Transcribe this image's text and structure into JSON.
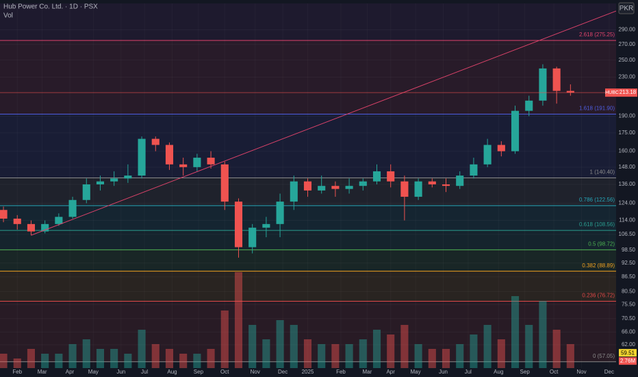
{
  "chart_data": {
    "type": "candlestick",
    "title": "Hub Power Co. Ltd. · 1D · PSX",
    "volume_title": "Vol",
    "currency": "PKR",
    "symbol": "HUBC",
    "log_scale": true,
    "xlim": [
      -0.25,
      44.3
    ],
    "ylim": [
      57,
      330
    ],
    "xticks": [
      {
        "value": 1,
        "label": "Feb"
      },
      {
        "value": 2.8,
        "label": "Mar"
      },
      {
        "value": 4.8,
        "label": "Apr"
      },
      {
        "value": 6.5,
        "label": "May"
      },
      {
        "value": 8.5,
        "label": "Jun"
      },
      {
        "value": 10.2,
        "label": "Jul"
      },
      {
        "value": 12.2,
        "label": "Aug"
      },
      {
        "value": 14.1,
        "label": "Sep"
      },
      {
        "value": 16,
        "label": "Oct"
      },
      {
        "value": 18.2,
        "label": "Nov"
      },
      {
        "value": 20.2,
        "label": "Dec"
      },
      {
        "value": 22,
        "label": "2025"
      },
      {
        "value": 24.4,
        "label": "Feb"
      },
      {
        "value": 26.3,
        "label": "Mar"
      },
      {
        "value": 28,
        "label": "Apr"
      },
      {
        "value": 29.8,
        "label": "May"
      },
      {
        "value": 31.8,
        "label": "Jun"
      },
      {
        "value": 33.6,
        "label": "Jul"
      },
      {
        "value": 35.8,
        "label": "Aug"
      },
      {
        "value": 37.7,
        "label": "Sep"
      },
      {
        "value": 39.8,
        "label": "Oct"
      },
      {
        "value": 41.8,
        "label": "Nov"
      },
      {
        "value": 43.8,
        "label": "Dec"
      }
    ],
    "yticks": [
      {
        "value": 290,
        "label": "290.00"
      },
      {
        "value": 270,
        "label": "270.00"
      },
      {
        "value": 250,
        "label": "250.00"
      },
      {
        "value": 230,
        "label": "230.00"
      },
      {
        "value": 190,
        "label": "190.00"
      },
      {
        "value": 175,
        "label": "175.00"
      },
      {
        "value": 160,
        "label": "160.00"
      },
      {
        "value": 148,
        "label": "148.00"
      },
      {
        "value": 136,
        "label": "136.00"
      },
      {
        "value": 124,
        "label": "124.00"
      },
      {
        "value": 114,
        "label": "114.00"
      },
      {
        "value": 106.5,
        "label": "106.50"
      },
      {
        "value": 98.5,
        "label": "98.50"
      },
      {
        "value": 92.5,
        "label": "92.50"
      },
      {
        "value": 86.5,
        "label": "86.50"
      },
      {
        "value": 80.5,
        "label": "80.50"
      },
      {
        "value": 75.5,
        "label": "75.50"
      },
      {
        "value": 70.5,
        "label": "70.50"
      },
      {
        "value": 66,
        "label": "66.00"
      },
      {
        "value": 62,
        "label": "62.00"
      }
    ],
    "fib_levels": [
      {
        "value": 330,
        "label": null,
        "color": "#7b3fa0"
      },
      {
        "value": 275.25,
        "label": "2.618 (275.25)",
        "color": "#e0436b"
      },
      {
        "value": 191.9,
        "label": "1.618 (191.90)",
        "color": "#4e5de0"
      },
      {
        "value": 140.4,
        "label": "1 (140.40)",
        "color": "#8a8a8a"
      },
      {
        "value": 122.56,
        "label": "0.786 (122.56)",
        "color": "#26a6b8"
      },
      {
        "value": 108.56,
        "label": "0.618 (108.56)",
        "color": "#2a9d8f"
      },
      {
        "value": 98.72,
        "label": "0.5 (98.72)",
        "color": "#4caf50"
      },
      {
        "value": 88.89,
        "label": "0.382 (88.89)",
        "color": "#f0a020"
      },
      {
        "value": 76.72,
        "label": "0.236 (76.72)",
        "color": "#e04848"
      },
      {
        "value": 57.05,
        "label": "0 (57.05)",
        "color": "#8a8a8a"
      }
    ],
    "trendline": {
      "x": [
        2,
        44.3
      ],
      "y": [
        106,
        318
      ],
      "color": "#e0436b"
    },
    "open": [
      120,
      115,
      112,
      108,
      112,
      116,
      126,
      136,
      138,
      140,
      142,
      170,
      165,
      150,
      148,
      155,
      150,
      125,
      100,
      110,
      112,
      125,
      138,
      132,
      135,
      133,
      135,
      138,
      145,
      138,
      128,
      138,
      136,
      135,
      142,
      150,
      165,
      160,
      195,
      205,
      240,
      215
    ],
    "high": [
      122,
      117,
      114,
      114,
      118,
      128,
      140,
      142,
      145,
      150,
      172,
      172,
      167,
      155,
      158,
      160,
      152,
      127,
      112,
      116,
      130,
      142,
      140,
      142,
      138,
      140,
      140,
      150,
      150,
      142,
      140,
      140,
      140,
      145,
      155,
      170,
      168,
      200,
      210,
      245,
      242,
      222
    ],
    "low": [
      113,
      109,
      106,
      107,
      111,
      115,
      124,
      132,
      135,
      137,
      140,
      160,
      146,
      142,
      145,
      147,
      120,
      95,
      97,
      105,
      105,
      120,
      128,
      130,
      128,
      130,
      132,
      136,
      134,
      114,
      126,
      134,
      131,
      133,
      140,
      148,
      156,
      158,
      190,
      200,
      202,
      210
    ],
    "close": [
      115,
      112,
      108,
      112,
      116,
      126,
      136,
      138,
      140,
      142,
      170,
      165,
      150,
      148,
      155,
      150,
      125,
      100,
      110,
      112,
      125,
      138,
      132,
      135,
      133,
      135,
      138,
      145,
      138,
      128,
      138,
      136,
      135,
      142,
      150,
      165,
      160,
      195,
      205,
      240,
      215,
      213.18
    ],
    "volume": [
      3,
      2,
      4,
      3,
      3,
      5,
      6,
      4,
      4,
      3,
      8,
      5,
      4,
      3,
      3,
      4,
      12,
      20,
      9,
      6,
      10,
      9,
      6,
      5,
      5,
      5,
      6,
      8,
      7,
      9,
      5,
      4,
      4,
      5,
      7,
      9,
      6,
      15,
      9,
      14,
      8,
      5
    ],
    "volume_label": "2.76M",
    "price_tag": 59.51,
    "up_color": "#26a69a",
    "down_color": "#ef5350"
  }
}
